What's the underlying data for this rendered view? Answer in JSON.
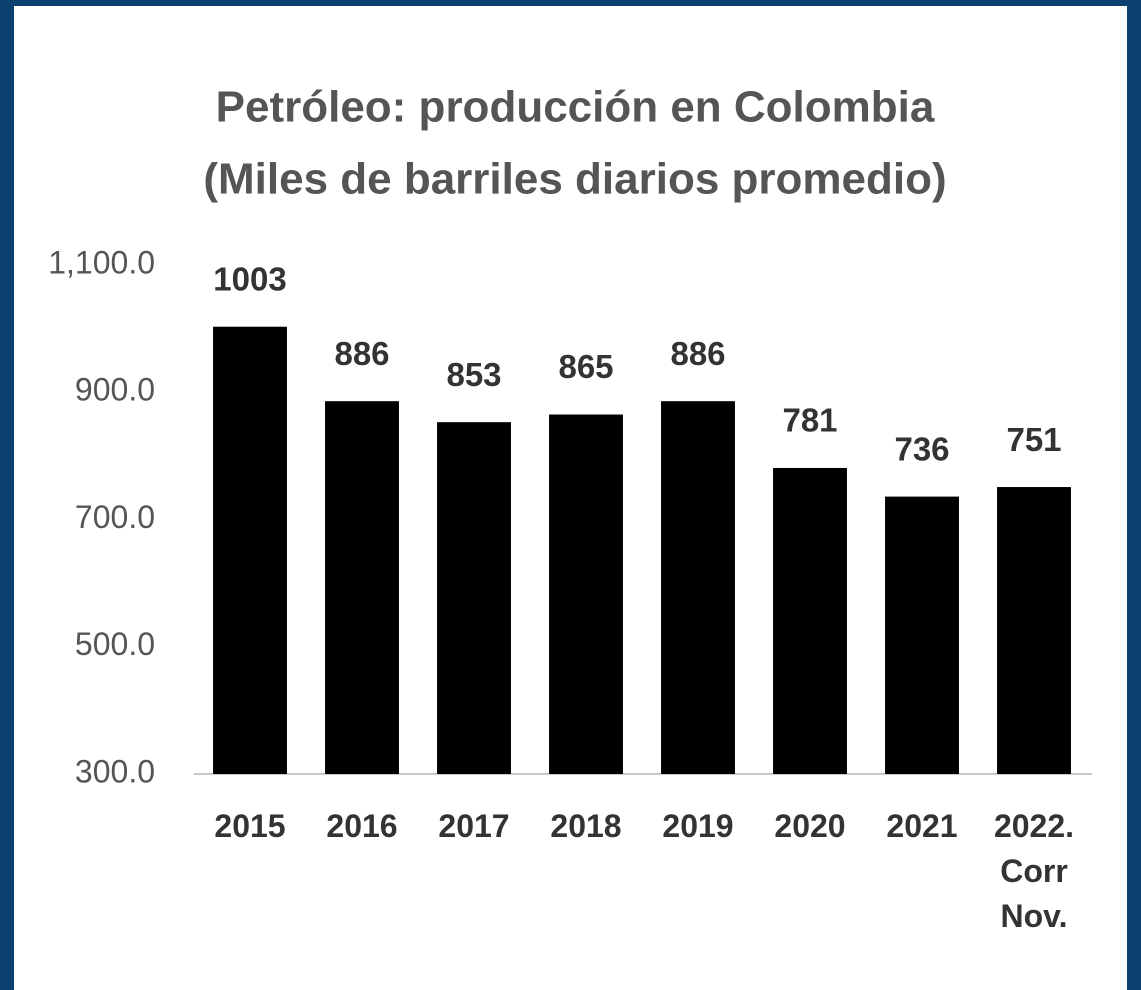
{
  "chart_data": {
    "type": "bar",
    "title": "Petróleo: producción en Colombia",
    "subtitle": "(Miles de barriles diarios promedio)",
    "categories": [
      "2015",
      "2016",
      "2017",
      "2018",
      "2019",
      "2020",
      "2021",
      "2022. Corr Nov."
    ],
    "values": [
      1003,
      886,
      853,
      865,
      886,
      781,
      736,
      751
    ],
    "color": "#000000",
    "ylim": [
      300,
      1100
    ],
    "yticks": [
      {
        "value": 300,
        "label": "300.0"
      },
      {
        "value": 500,
        "label": "500.0"
      },
      {
        "value": 700,
        "label": "700.0"
      },
      {
        "value": 900,
        "label": "900.0"
      },
      {
        "value": 1100,
        "label": "1,100.0"
      }
    ],
    "grid": false
  }
}
